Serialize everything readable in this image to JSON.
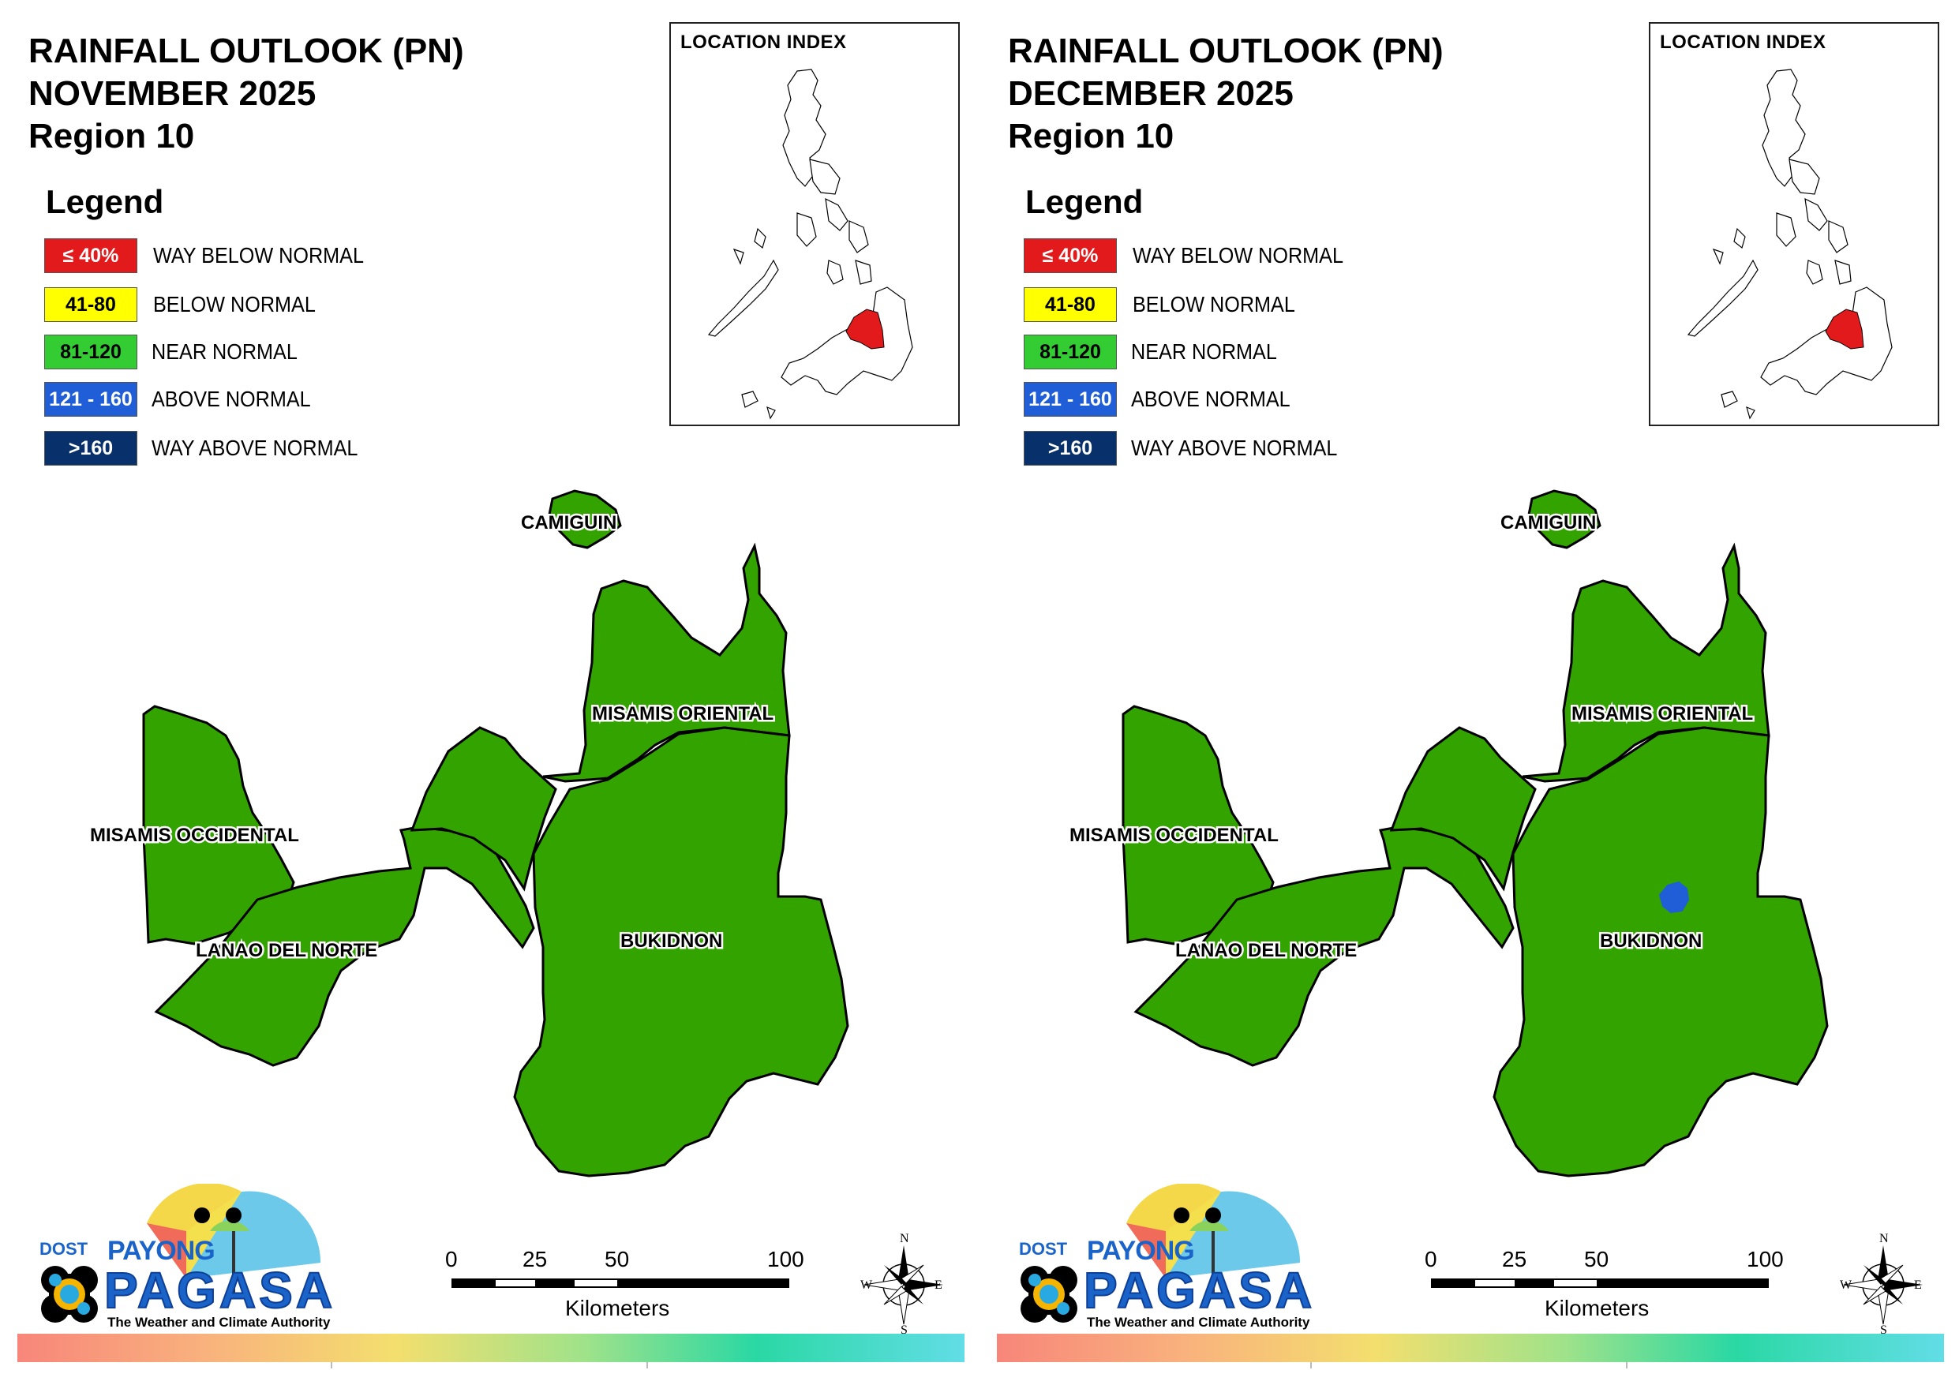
{
  "panels": [
    {
      "title_line1": "RAINFALL OUTLOOK (PN)",
      "title_line2": "NOVEMBER 2025",
      "title_line3": "Region 10",
      "has_blue_spot": false
    },
    {
      "title_line1": "RAINFALL OUTLOOK (PN)",
      "title_line2": "DECEMBER 2025",
      "title_line3": "Region 10",
      "has_blue_spot": true
    }
  ],
  "legend": {
    "title": "Legend",
    "items": [
      {
        "range": "≤ 40%",
        "label": "WAY BELOW NORMAL",
        "color": "#e31a1c",
        "text_color": "#ffffff"
      },
      {
        "range": "41-80",
        "label": "BELOW NORMAL",
        "color": "#ffff00",
        "text_color": "#000000"
      },
      {
        "range": "81-120",
        "label": "NEAR NORMAL",
        "color": "#33cc33",
        "text_color": "#000000"
      },
      {
        "range": "121 - 160",
        "label": "ABOVE NORMAL",
        "color": "#1f5ed6",
        "text_color": "#ffffff"
      },
      {
        "range": ">160",
        "label": "WAY ABOVE NORMAL",
        "color": "#08306b",
        "text_color": "#ffffff"
      }
    ]
  },
  "location_index": {
    "title": "LOCATION INDEX",
    "highlight_color": "#e31a1c"
  },
  "provinces": {
    "camiguin": "CAMIGUIN",
    "misamis_oriental": "MISAMIS ORIENTAL",
    "misamis_occidental": "MISAMIS OCCIDENTAL",
    "lanao_del_norte": "LANAO DEL NORTE",
    "bukidnon": "BUKIDNON",
    "fill_color": "#33a300",
    "spot_color": "#1f5ed6"
  },
  "branding": {
    "dost": "DOST",
    "payong": "PAYONG",
    "pagasa": "PAGASA",
    "tagline": "The Weather and Climate Authority"
  },
  "scale": {
    "ticks": [
      "0",
      "25",
      "50",
      "100"
    ],
    "unit": "Kilometers"
  },
  "compass": {
    "n": "N",
    "s": "S",
    "e": "E",
    "w": "W"
  }
}
